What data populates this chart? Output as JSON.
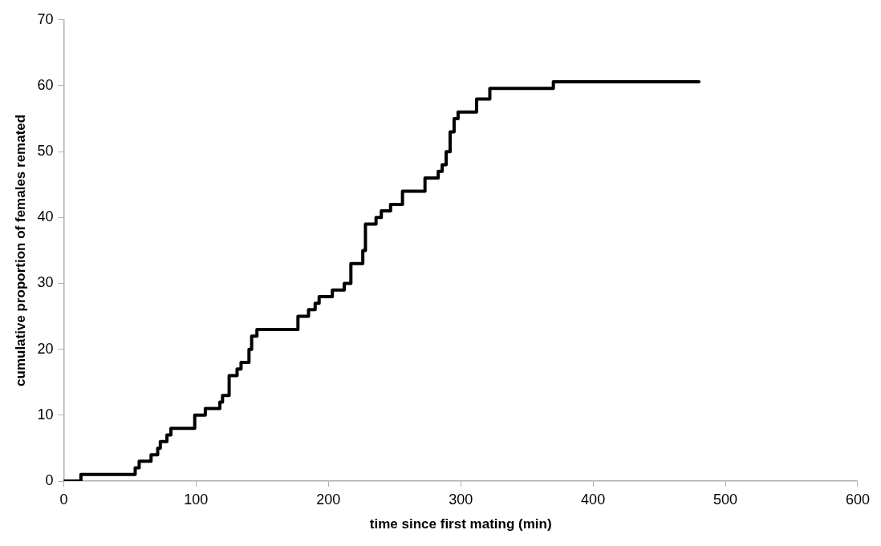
{
  "chart_data": {
    "type": "step",
    "xlabel": "time since first mating (min)",
    "ylabel": "cumulative proportion of females remated",
    "x": [
      0,
      13,
      54,
      57,
      66,
      71,
      73,
      78,
      81,
      99,
      107,
      118,
      120,
      125,
      131,
      134,
      140,
      142,
      146,
      177,
      185,
      190,
      193,
      203,
      212,
      217,
      226,
      228,
      236,
      240,
      247,
      256,
      273,
      283,
      286,
      289,
      292,
      295,
      298,
      312,
      322,
      370,
      480
    ],
    "series": [
      {
        "color": "#000000",
        "values": [
          0,
          1,
          2,
          3,
          4,
          5,
          6,
          7,
          8,
          10,
          11,
          12,
          13,
          16,
          17,
          18,
          20,
          22,
          23,
          25,
          26,
          27,
          28,
          29,
          30,
          33,
          35,
          39,
          40,
          41,
          42,
          44,
          46,
          47,
          48,
          50,
          53,
          55,
          56,
          58,
          59.6,
          60.6,
          60.6
        ]
      }
    ],
    "xlim": [
      0,
      600
    ],
    "xticks": [
      0,
      100,
      200,
      300,
      400,
      500,
      600
    ],
    "ylim": [
      0,
      70
    ],
    "yticks": [
      0,
      10,
      20,
      30,
      40,
      50,
      60,
      70
    ],
    "grid": false,
    "legend": false,
    "marker": "none",
    "line_style": "solid"
  }
}
